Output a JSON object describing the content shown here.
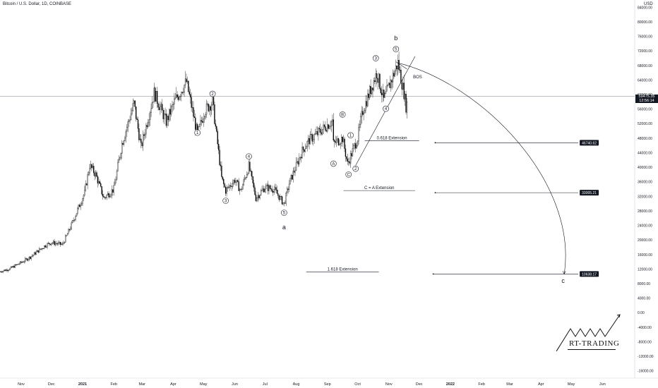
{
  "header": {
    "symbol_title": "Bitcoin / U.S. Dollar, 1D, COINBASE",
    "currency": "USD"
  },
  "chart_data": {
    "type": "candlestick",
    "title": "Bitcoin / U.S. Dollar, 1D, COINBASE",
    "y_axis": {
      "unit": "USD",
      "ticks": [
        "84000.00",
        "80000.00",
        "76000.00",
        "72000.00",
        "68000.00",
        "64000.00",
        "60000.00",
        "56000.00",
        "52000.00",
        "48000.00",
        "44000.00",
        "40000.00",
        "36000.00",
        "32000.00",
        "28000.00",
        "24000.00",
        "20000.00",
        "16000.00",
        "12000.00",
        "8000.00",
        "4000.00",
        "0.00",
        "-4000.00",
        "-8000.00",
        "-12000.00",
        "-16000.00"
      ],
      "tick_values": [
        84000,
        80000,
        76000,
        72000,
        68000,
        64000,
        60000,
        56000,
        52000,
        48000,
        44000,
        40000,
        36000,
        32000,
        28000,
        24000,
        20000,
        16000,
        12000,
        8000,
        4000,
        0,
        -4000,
        -8000,
        -12000,
        -16000
      ],
      "range": [
        -18000,
        86000
      ]
    },
    "x_axis": {
      "ticks": [
        "Nov",
        "Dec",
        "2021",
        "Feb",
        "Mar",
        "Apr",
        "May",
        "Jun",
        "Jul",
        "Aug",
        "Sep",
        "Oct",
        "Nov",
        "Dec",
        "2022",
        "Feb",
        "Mar",
        "Apr",
        "May",
        "Jun"
      ],
      "tick_dates": [
        "2020-11-01",
        "2020-12-01",
        "2021-01-01",
        "2021-02-01",
        "2021-03-01",
        "2021-04-01",
        "2021-05-01",
        "2021-06-01",
        "2021-07-01",
        "2021-08-01",
        "2021-09-01",
        "2021-10-01",
        "2021-11-01",
        "2021-12-01",
        "2022-01-01",
        "2022-02-01",
        "2022-03-01",
        "2022-04-01",
        "2022-05-01",
        "2022-06-01"
      ],
      "range": [
        "2020-10-11",
        "2022-07-03"
      ]
    },
    "price_path": [
      [
        "2020-10-11",
        11300
      ],
      [
        "2020-10-20",
        12000
      ],
      [
        "2020-11-01",
        13800
      ],
      [
        "2020-11-10",
        15300
      ],
      [
        "2020-11-25",
        18500
      ],
      [
        "2020-12-01",
        19300
      ],
      [
        "2020-12-12",
        18700
      ],
      [
        "2020-12-20",
        23500
      ],
      [
        "2021-01-03",
        33000
      ],
      [
        "2021-01-08",
        40500
      ],
      [
        "2021-01-14",
        38000
      ],
      [
        "2021-01-22",
        31500
      ],
      [
        "2021-02-01",
        34000
      ],
      [
        "2021-02-09",
        46500
      ],
      [
        "2021-02-21",
        57500
      ],
      [
        "2021-02-28",
        45500
      ],
      [
        "2021-03-13",
        60500
      ],
      [
        "2021-03-25",
        52500
      ],
      [
        "2021-04-03",
        58500
      ],
      [
        "2021-04-14",
        63500
      ],
      [
        "2021-04-25",
        49000
      ],
      [
        "2021-05-02",
        55500
      ],
      [
        "2021-05-10",
        58000
      ],
      [
        "2021-05-19",
        37000
      ],
      [
        "2021-05-23",
        33500
      ],
      [
        "2021-06-01",
        36500
      ],
      [
        "2021-06-07",
        33500
      ],
      [
        "2021-06-15",
        40300
      ],
      [
        "2021-06-22",
        31500
      ],
      [
        "2021-07-01",
        34500
      ],
      [
        "2021-07-10",
        34000
      ],
      [
        "2021-07-20",
        29800
      ],
      [
        "2021-07-25",
        35500
      ],
      [
        "2021-08-07",
        44500
      ],
      [
        "2021-08-14",
        47500
      ],
      [
        "2021-08-23",
        49500
      ],
      [
        "2021-09-06",
        52800
      ],
      [
        "2021-09-07",
        46500
      ],
      [
        "2021-09-16",
        48000
      ],
      [
        "2021-09-21",
        40900
      ],
      [
        "2021-10-01",
        48000
      ],
      [
        "2021-10-06",
        55500
      ],
      [
        "2021-10-20",
        66000
      ],
      [
        "2021-10-27",
        58500
      ],
      [
        "2021-11-10",
        68700
      ],
      [
        "2021-11-16",
        60500
      ],
      [
        "2021-11-18",
        56800
      ],
      [
        "2021-11-19",
        57500
      ]
    ],
    "last_price": {
      "label": "59475.35",
      "value": 59475.35,
      "countdown": "12:56:14"
    },
    "wave_labels": [
      {
        "label": "1",
        "date": "2021-04-25",
        "value": 49500
      },
      {
        "label": "2",
        "date": "2021-05-10",
        "value": 60200
      },
      {
        "label": "3",
        "date": "2021-05-23",
        "value": 30800
      },
      {
        "label": "4",
        "date": "2021-06-15",
        "value": 43000
      },
      {
        "label": "5",
        "date": "2021-07-20",
        "value": 27500
      },
      {
        "label": "a",
        "date": "2021-07-20",
        "value": 23500
      },
      {
        "label": "A",
        "date": "2021-09-07",
        "value": 41000
      },
      {
        "label": "B",
        "date": "2021-09-16",
        "value": 54500
      },
      {
        "label": "C",
        "date": "2021-09-22",
        "value": 38000
      },
      {
        "label": "1",
        "date": "2021-09-24",
        "value": 48800
      },
      {
        "label": "2",
        "date": "2021-09-29",
        "value": 39600
      },
      {
        "label": "3",
        "date": "2021-10-19",
        "value": 70000
      },
      {
        "label": "4",
        "date": "2021-10-29",
        "value": 56100
      },
      {
        "label": "5",
        "date": "2021-11-08",
        "value": 72500
      },
      {
        "label": "b",
        "date": "2021-11-08",
        "value": 75500
      },
      {
        "label": "c",
        "date": "2022-04-23",
        "value": 8800
      }
    ],
    "annotations": [
      {
        "text": "BOS"
      },
      {
        "text": "0.618 Extension",
        "target": "46740.62",
        "value": 46740.62
      },
      {
        "text": "C = A Extension",
        "target": "33005.21",
        "value": 33005.21
      },
      {
        "text": "1.618 Extension",
        "target": "10638.17",
        "value": 10638.17
      }
    ],
    "grid": false
  },
  "watermark": {
    "text": "RT-TRADING"
  }
}
